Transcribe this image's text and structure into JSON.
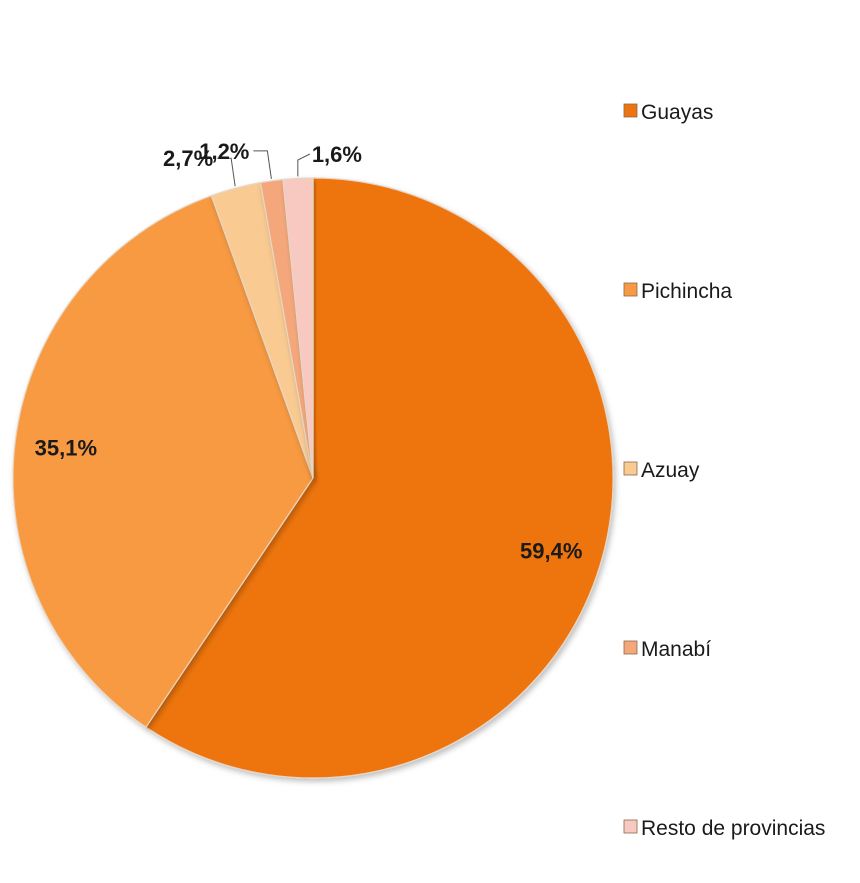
{
  "chart_data": {
    "type": "pie",
    "title": "",
    "slices": [
      {
        "label": "Guayas",
        "value": 59.4,
        "display": "59,4%",
        "color": "#EE7411"
      },
      {
        "label": "Pichincha",
        "value": 35.1,
        "display": "35,1%",
        "color": "#F79A43"
      },
      {
        "label": "Azuay",
        "value": 2.7,
        "display": "2,7%",
        "color": "#F9CB92"
      },
      {
        "label": "Manabí",
        "value": 1.2,
        "display": "1,2%",
        "color": "#F5A77C"
      },
      {
        "label": "Resto de provincias",
        "value": 1.6,
        "display": "1,6%",
        "color": "#F8C9C0"
      }
    ],
    "start_angle_deg": 0,
    "direction": "clockwise",
    "legend_position": "right"
  }
}
